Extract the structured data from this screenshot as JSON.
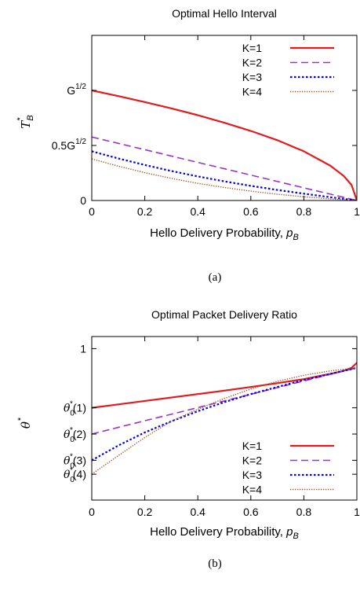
{
  "chart_data": [
    {
      "panel": "(a)",
      "type": "line",
      "title": "Optimal Hello Interval",
      "xlabel": "Hello Delivery Probability, p_B",
      "xlabel_parts": {
        "text": "Hello Delivery Probability, ",
        "var": "p",
        "sub": "B"
      },
      "ylabel": "T_B^*",
      "ylabel_parts": {
        "var": "T",
        "sub": "B",
        "sup": "*"
      },
      "xlim": [
        0,
        1
      ],
      "ylim": [
        0,
        1.5
      ],
      "xticks": [
        {
          "value": 0,
          "label": "0"
        },
        {
          "value": 0.2,
          "label": "0.2"
        },
        {
          "value": 0.4,
          "label": "0.4"
        },
        {
          "value": 0.6,
          "label": "0.6"
        },
        {
          "value": 0.8,
          "label": "0.8"
        },
        {
          "value": 1,
          "label": "1"
        }
      ],
      "yticks": [
        {
          "value": 0,
          "base": "0",
          "sup": ""
        },
        {
          "value": 0.5,
          "base": "0.5G",
          "sup": "1/2"
        },
        {
          "value": 1,
          "base": "G",
          "sup": "1/2"
        }
      ],
      "grid": false,
      "legend_position": "top-right",
      "series": [
        {
          "name": "K=1",
          "color": "#e41a1c",
          "dash": "solid",
          "x": [
            0,
            0.1,
            0.2,
            0.3,
            0.4,
            0.5,
            0.6,
            0.7,
            0.8,
            0.9,
            0.95,
            0.98,
            1.0
          ],
          "y": [
            1.0,
            0.949,
            0.894,
            0.837,
            0.775,
            0.707,
            0.632,
            0.548,
            0.447,
            0.316,
            0.224,
            0.141,
            0.0
          ]
        },
        {
          "name": "K=2",
          "color": "#9932cc",
          "dash": "dashed",
          "x": [
            0,
            0.1,
            0.2,
            0.3,
            0.4,
            0.5,
            0.6,
            0.7,
            0.8,
            0.9,
            1.0
          ],
          "y": [
            0.577,
            0.519,
            0.462,
            0.404,
            0.346,
            0.289,
            0.231,
            0.173,
            0.115,
            0.058,
            0.0
          ]
        },
        {
          "name": "K=3",
          "color": "#0000ee",
          "dash": "dotted",
          "x": [
            0,
            0.1,
            0.2,
            0.3,
            0.4,
            0.5,
            0.6,
            0.7,
            0.8,
            0.9,
            1.0
          ],
          "y": [
            0.447,
            0.382,
            0.323,
            0.268,
            0.219,
            0.174,
            0.133,
            0.096,
            0.062,
            0.03,
            0.0
          ]
        },
        {
          "name": "K=4",
          "color": "#a0522d",
          "dash": "fine-dotted",
          "x": [
            0,
            0.1,
            0.2,
            0.3,
            0.4,
            0.5,
            0.6,
            0.7,
            0.8,
            0.9,
            1.0
          ],
          "y": [
            0.378,
            0.312,
            0.253,
            0.201,
            0.156,
            0.118,
            0.085,
            0.057,
            0.034,
            0.015,
            0.0
          ]
        }
      ]
    },
    {
      "panel": "(b)",
      "type": "line",
      "title": "Optimal Packet Delivery Ratio",
      "xlabel": "Hello Delivery Probability, p_B",
      "xlabel_parts": {
        "text": "Hello Delivery Probability, ",
        "var": "p",
        "sub": "B"
      },
      "ylabel": "θ^*",
      "ylabel_parts": {
        "var": "θ",
        "sup": "*"
      },
      "xlim": [
        0,
        1
      ],
      "ylim": [
        0.25,
        1.06
      ],
      "xticks": [
        {
          "value": 0,
          "label": "0"
        },
        {
          "value": 0.2,
          "label": "0.2"
        },
        {
          "value": 0.4,
          "label": "0.4"
        },
        {
          "value": 0.6,
          "label": "0.6"
        },
        {
          "value": 0.8,
          "label": "0.8"
        },
        {
          "value": 1,
          "label": "1"
        }
      ],
      "yticks": [
        {
          "value": 1.0,
          "kind": "plain",
          "label": "1"
        },
        {
          "value": 0.707,
          "kind": "theta",
          "arg": "(1)"
        },
        {
          "value": 0.577,
          "kind": "theta",
          "arg": "(2)"
        },
        {
          "value": 0.447,
          "kind": "theta",
          "arg": "(3)"
        },
        {
          "value": 0.378,
          "kind": "theta",
          "arg": "(4)"
        }
      ],
      "grid": false,
      "legend_position": "bottom-right",
      "series": [
        {
          "name": "K=1",
          "color": "#e41a1c",
          "dash": "solid",
          "x": [
            0,
            0.1,
            0.2,
            0.3,
            0.4,
            0.5,
            0.6,
            0.7,
            0.8,
            0.9,
            0.95,
            0.98,
            1.0
          ],
          "y": [
            0.707,
            0.724,
            0.741,
            0.758,
            0.775,
            0.792,
            0.81,
            0.829,
            0.849,
            0.875,
            0.89,
            0.905,
            0.93
          ]
        },
        {
          "name": "K=2",
          "color": "#9932cc",
          "dash": "dashed",
          "x": [
            0,
            0.1,
            0.2,
            0.3,
            0.4,
            0.5,
            0.6,
            0.7,
            0.8,
            0.9,
            1.0
          ],
          "y": [
            0.577,
            0.61,
            0.643,
            0.675,
            0.708,
            0.741,
            0.774,
            0.807,
            0.84,
            0.873,
            0.905
          ]
        },
        {
          "name": "K=3",
          "color": "#0000ee",
          "dash": "dotted",
          "x": [
            0,
            0.1,
            0.2,
            0.3,
            0.4,
            0.5,
            0.6,
            0.7,
            0.8,
            0.9,
            1.0
          ],
          "y": [
            0.447,
            0.52,
            0.585,
            0.64,
            0.69,
            0.735,
            0.775,
            0.81,
            0.845,
            0.875,
            0.905
          ]
        },
        {
          "name": "K=4",
          "color": "#a0522d",
          "dash": "fine-dotted",
          "x": [
            0,
            0.1,
            0.2,
            0.3,
            0.4,
            0.5,
            0.6,
            0.7,
            0.8,
            0.9,
            1.0
          ],
          "y": [
            0.378,
            0.47,
            0.56,
            0.64,
            0.7,
            0.753,
            0.8,
            0.838,
            0.868,
            0.89,
            0.905
          ]
        }
      ]
    }
  ]
}
